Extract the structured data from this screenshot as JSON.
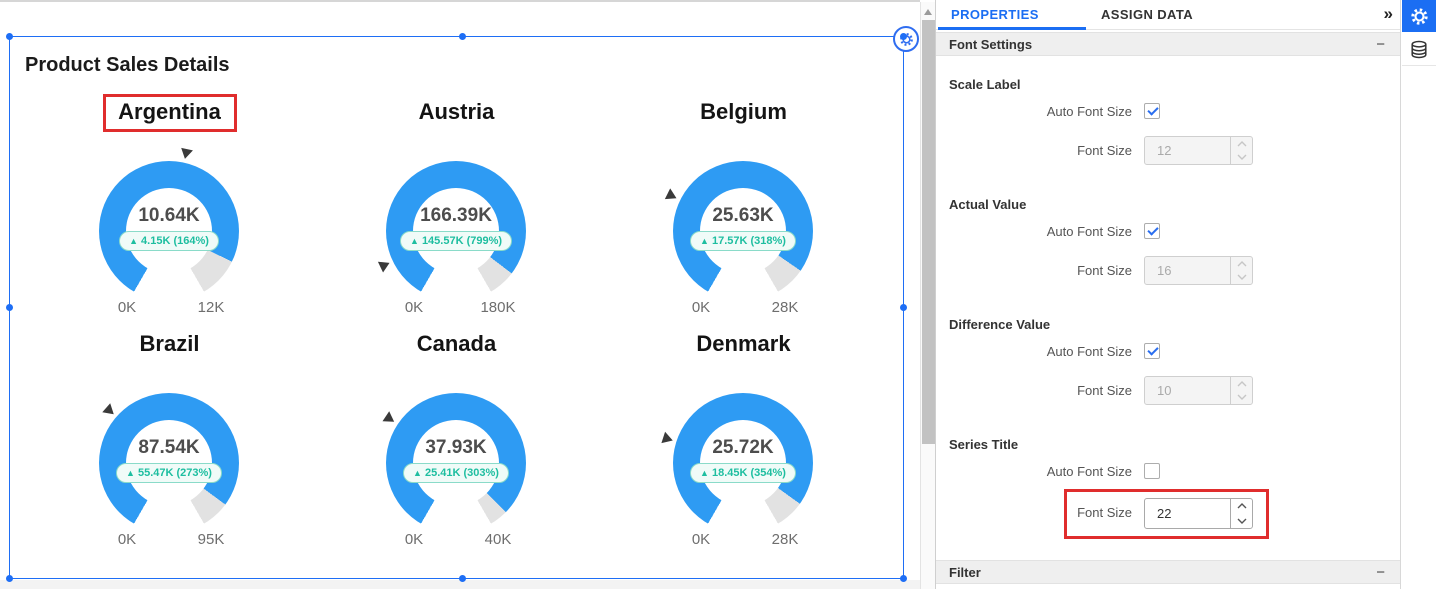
{
  "canvas": {
    "widget_title": "Product Sales Details",
    "gauges": [
      {
        "title": "Argentina",
        "value": "10.64K",
        "diff_arrow": "▲",
        "diff": "4.15K (164%)",
        "min": "0K",
        "max": "12K",
        "value_k": 10.64,
        "max_k": 12,
        "target_k": 6.49,
        "highlighted": true
      },
      {
        "title": "Austria",
        "value": "166.39K",
        "diff_arrow": "▲",
        "diff": "145.57K (799%)",
        "min": "0K",
        "max": "180K",
        "value_k": 166.39,
        "max_k": 180,
        "target_k": 20.82,
        "highlighted": false
      },
      {
        "title": "Belgium",
        "value": "25.63K",
        "diff_arrow": "▲",
        "diff": "17.57K (318%)",
        "min": "0K",
        "max": "28K",
        "value_k": 25.63,
        "max_k": 28,
        "target_k": 8.06,
        "highlighted": false
      },
      {
        "title": "Brazil",
        "value": "87.54K",
        "diff_arrow": "▲",
        "diff": "55.47K (273%)",
        "min": "0K",
        "max": "95K",
        "value_k": 87.54,
        "max_k": 95,
        "target_k": 32.07,
        "highlighted": false
      },
      {
        "title": "Canada",
        "value": "37.93K",
        "diff_arrow": "▲",
        "diff": "25.41K (303%)",
        "min": "0K",
        "max": "40K",
        "value_k": 37.93,
        "max_k": 40,
        "target_k": 12.52,
        "highlighted": false
      },
      {
        "title": "Denmark",
        "value": "25.72K",
        "diff_arrow": "▲",
        "diff": "18.45K (354%)",
        "min": "0K",
        "max": "28K",
        "value_k": 25.72,
        "max_k": 28,
        "target_k": 7.27,
        "highlighted": false
      }
    ],
    "colors": {
      "gauge_fill": "#2E9BF3",
      "gauge_rest": "#E2E2E2",
      "diff_teal": "#1EBEA0",
      "selection_blue": "#1E6EF5",
      "annotation_red": "#E02D2D",
      "accent_blue": "#1b6ef3"
    }
  },
  "chart_data": [
    {
      "type": "gauge",
      "title": "Argentina",
      "value": 10640,
      "min": 0,
      "max": 12000,
      "target": 6490,
      "delta": "4.15K (164%)"
    },
    {
      "type": "gauge",
      "title": "Austria",
      "value": 166390,
      "min": 0,
      "max": 180000,
      "target": 20820,
      "delta": "145.57K (799%)"
    },
    {
      "type": "gauge",
      "title": "Belgium",
      "value": 25630,
      "min": 0,
      "max": 28000,
      "target": 8060,
      "delta": "17.57K (318%)"
    },
    {
      "type": "gauge",
      "title": "Brazil",
      "value": 87540,
      "min": 0,
      "max": 95000,
      "target": 32070,
      "delta": "55.47K (273%)"
    },
    {
      "type": "gauge",
      "title": "Canada",
      "value": 37930,
      "min": 0,
      "max": 40000,
      "target": 12520,
      "delta": "25.41K (303%)"
    },
    {
      "type": "gauge",
      "title": "Denmark",
      "value": 25720,
      "min": 0,
      "max": 28000,
      "target": 7270,
      "delta": "18.45K (354%)"
    }
  ],
  "panel": {
    "tab_properties": "PROPERTIES",
    "tab_assign_data": "ASSIGN DATA",
    "collapse_icon": "»",
    "collapse_glyph": "−",
    "font_settings_title": "Font Settings",
    "filter_title": "Filter",
    "groups": [
      {
        "title": "Scale Label",
        "auto_label": "Auto Font Size",
        "auto_checked": true,
        "size_label": "Font Size",
        "size_value": "12",
        "size_enabled": false
      },
      {
        "title": "Actual Value",
        "auto_label": "Auto Font Size",
        "auto_checked": true,
        "size_label": "Font Size",
        "size_value": "16",
        "size_enabled": false
      },
      {
        "title": "Difference Value",
        "auto_label": "Auto Font Size",
        "auto_checked": true,
        "size_label": "Font Size",
        "size_value": "10",
        "size_enabled": false
      },
      {
        "title": "Series Title",
        "auto_label": "Auto Font Size",
        "auto_checked": false,
        "size_label": "Font Size",
        "size_value": "22",
        "size_enabled": true
      }
    ]
  }
}
